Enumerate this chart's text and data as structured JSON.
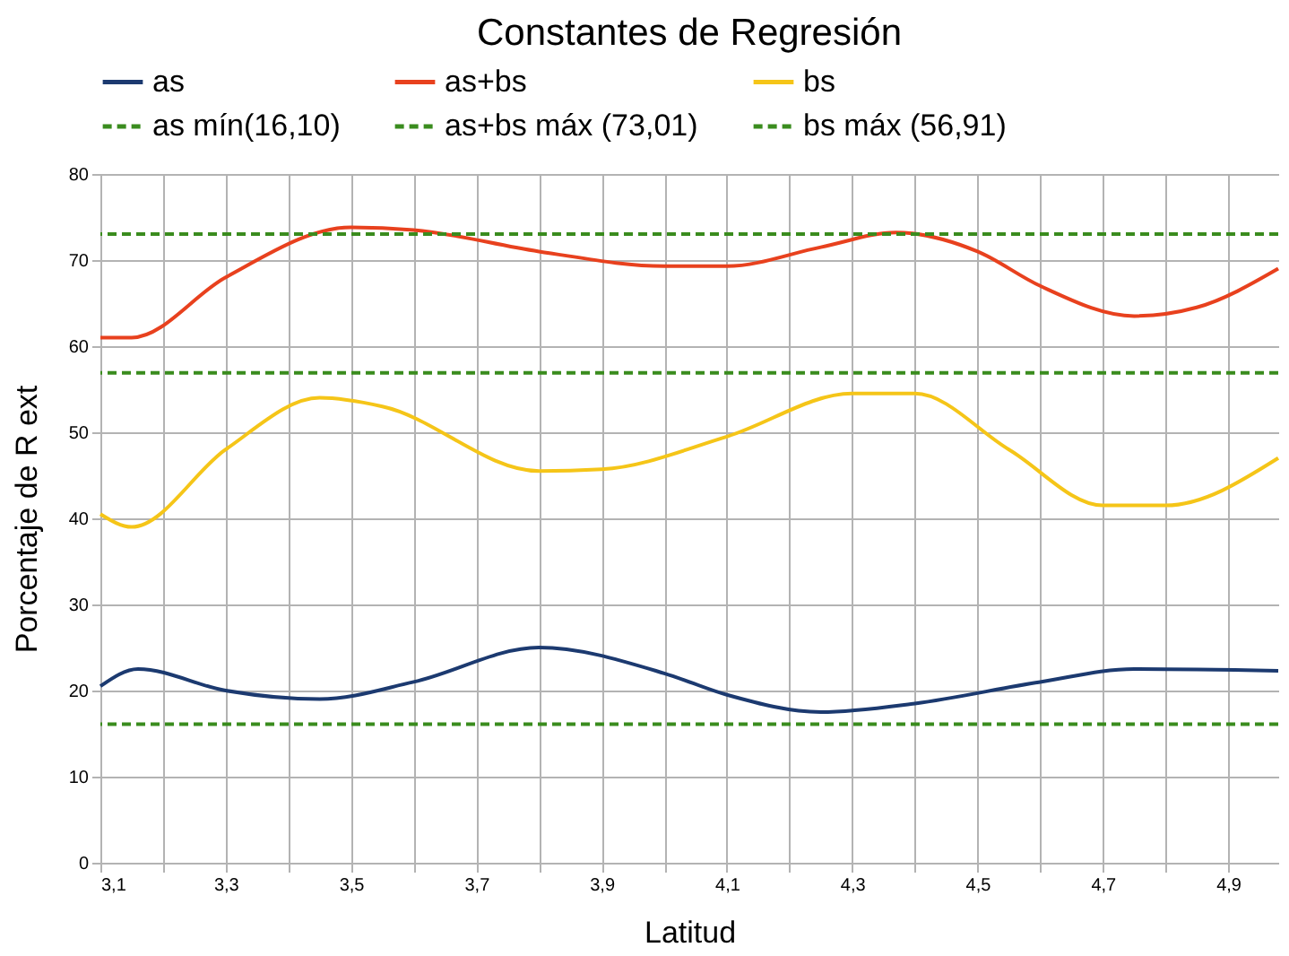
{
  "chart_data": {
    "type": "line",
    "title": "Constantes de Regresión",
    "xlabel": "Latitud",
    "ylabel": "Porcentaje de R ext",
    "xlim": [
      3.1,
      4.98
    ],
    "ylim": [
      0,
      80
    ],
    "xticks": [
      {
        "value": 3.1,
        "label": "3,1"
      },
      {
        "value": 3.2,
        "label": null
      },
      {
        "value": 3.3,
        "label": "3,3"
      },
      {
        "value": 3.4,
        "label": null
      },
      {
        "value": 3.5,
        "label": "3,5"
      },
      {
        "value": 3.6,
        "label": null
      },
      {
        "value": 3.7,
        "label": "3,7"
      },
      {
        "value": 3.8,
        "label": null
      },
      {
        "value": 3.9,
        "label": "3,9"
      },
      {
        "value": 4.0,
        "label": null
      },
      {
        "value": 4.1,
        "label": "4,1"
      },
      {
        "value": 4.2,
        "label": null
      },
      {
        "value": 4.3,
        "label": "4,3"
      },
      {
        "value": 4.4,
        "label": null
      },
      {
        "value": 4.5,
        "label": "4,5"
      },
      {
        "value": 4.6,
        "label": null
      },
      {
        "value": 4.7,
        "label": "4,7"
      },
      {
        "value": 4.8,
        "label": null
      },
      {
        "value": 4.9,
        "label": "4,9"
      }
    ],
    "yticks": [
      0,
      10,
      20,
      30,
      40,
      50,
      60,
      70,
      80
    ],
    "grid": true,
    "legend": "top",
    "marker": "none",
    "line_style": "solid",
    "series": [
      {
        "name": "as",
        "color": "#1c3a70",
        "x": [
          3.1,
          3.16,
          3.3,
          3.45,
          3.6,
          3.8,
          4.0,
          4.1,
          4.25,
          4.4,
          4.6,
          4.75,
          4.98
        ],
        "values": [
          20.5,
          22.5,
          20,
          19,
          21,
          25,
          22,
          19.5,
          17.5,
          18.5,
          21,
          22.5,
          22.3
        ]
      },
      {
        "name": "as+bs",
        "color": "#e8411e",
        "x": [
          3.1,
          3.15,
          3.3,
          3.5,
          3.6,
          3.8,
          4.0,
          4.1,
          4.25,
          4.37,
          4.5,
          4.6,
          4.75,
          4.85,
          4.98
        ],
        "values": [
          61,
          61,
          68,
          73.8,
          73.5,
          71,
          69.3,
          69.3,
          71.5,
          73.2,
          71,
          67,
          63.5,
          64.5,
          69
        ]
      },
      {
        "name": "bs",
        "color": "#f5c518",
        "x": [
          3.1,
          3.15,
          3.3,
          3.45,
          3.55,
          3.8,
          3.9,
          4.1,
          4.3,
          4.4,
          4.55,
          4.7,
          4.8,
          4.98
        ],
        "values": [
          40.5,
          39,
          48,
          54,
          53,
          45.5,
          45.7,
          49.5,
          54.5,
          54.5,
          48,
          41.5,
          41.5,
          47
        ]
      }
    ],
    "ref_lines": [
      {
        "axis": "y",
        "value": 16.1,
        "label": "as mín(16,10)",
        "color": "#3a8c1e",
        "line_style": "dashed"
      },
      {
        "axis": "y",
        "value": 73.01,
        "label": "as+bs máx (73,01)",
        "color": "#3a8c1e",
        "line_style": "dashed"
      },
      {
        "axis": "y",
        "value": 56.91,
        "label": "bs máx (56,91)",
        "color": "#3a8c1e",
        "line_style": "dashed"
      }
    ]
  }
}
